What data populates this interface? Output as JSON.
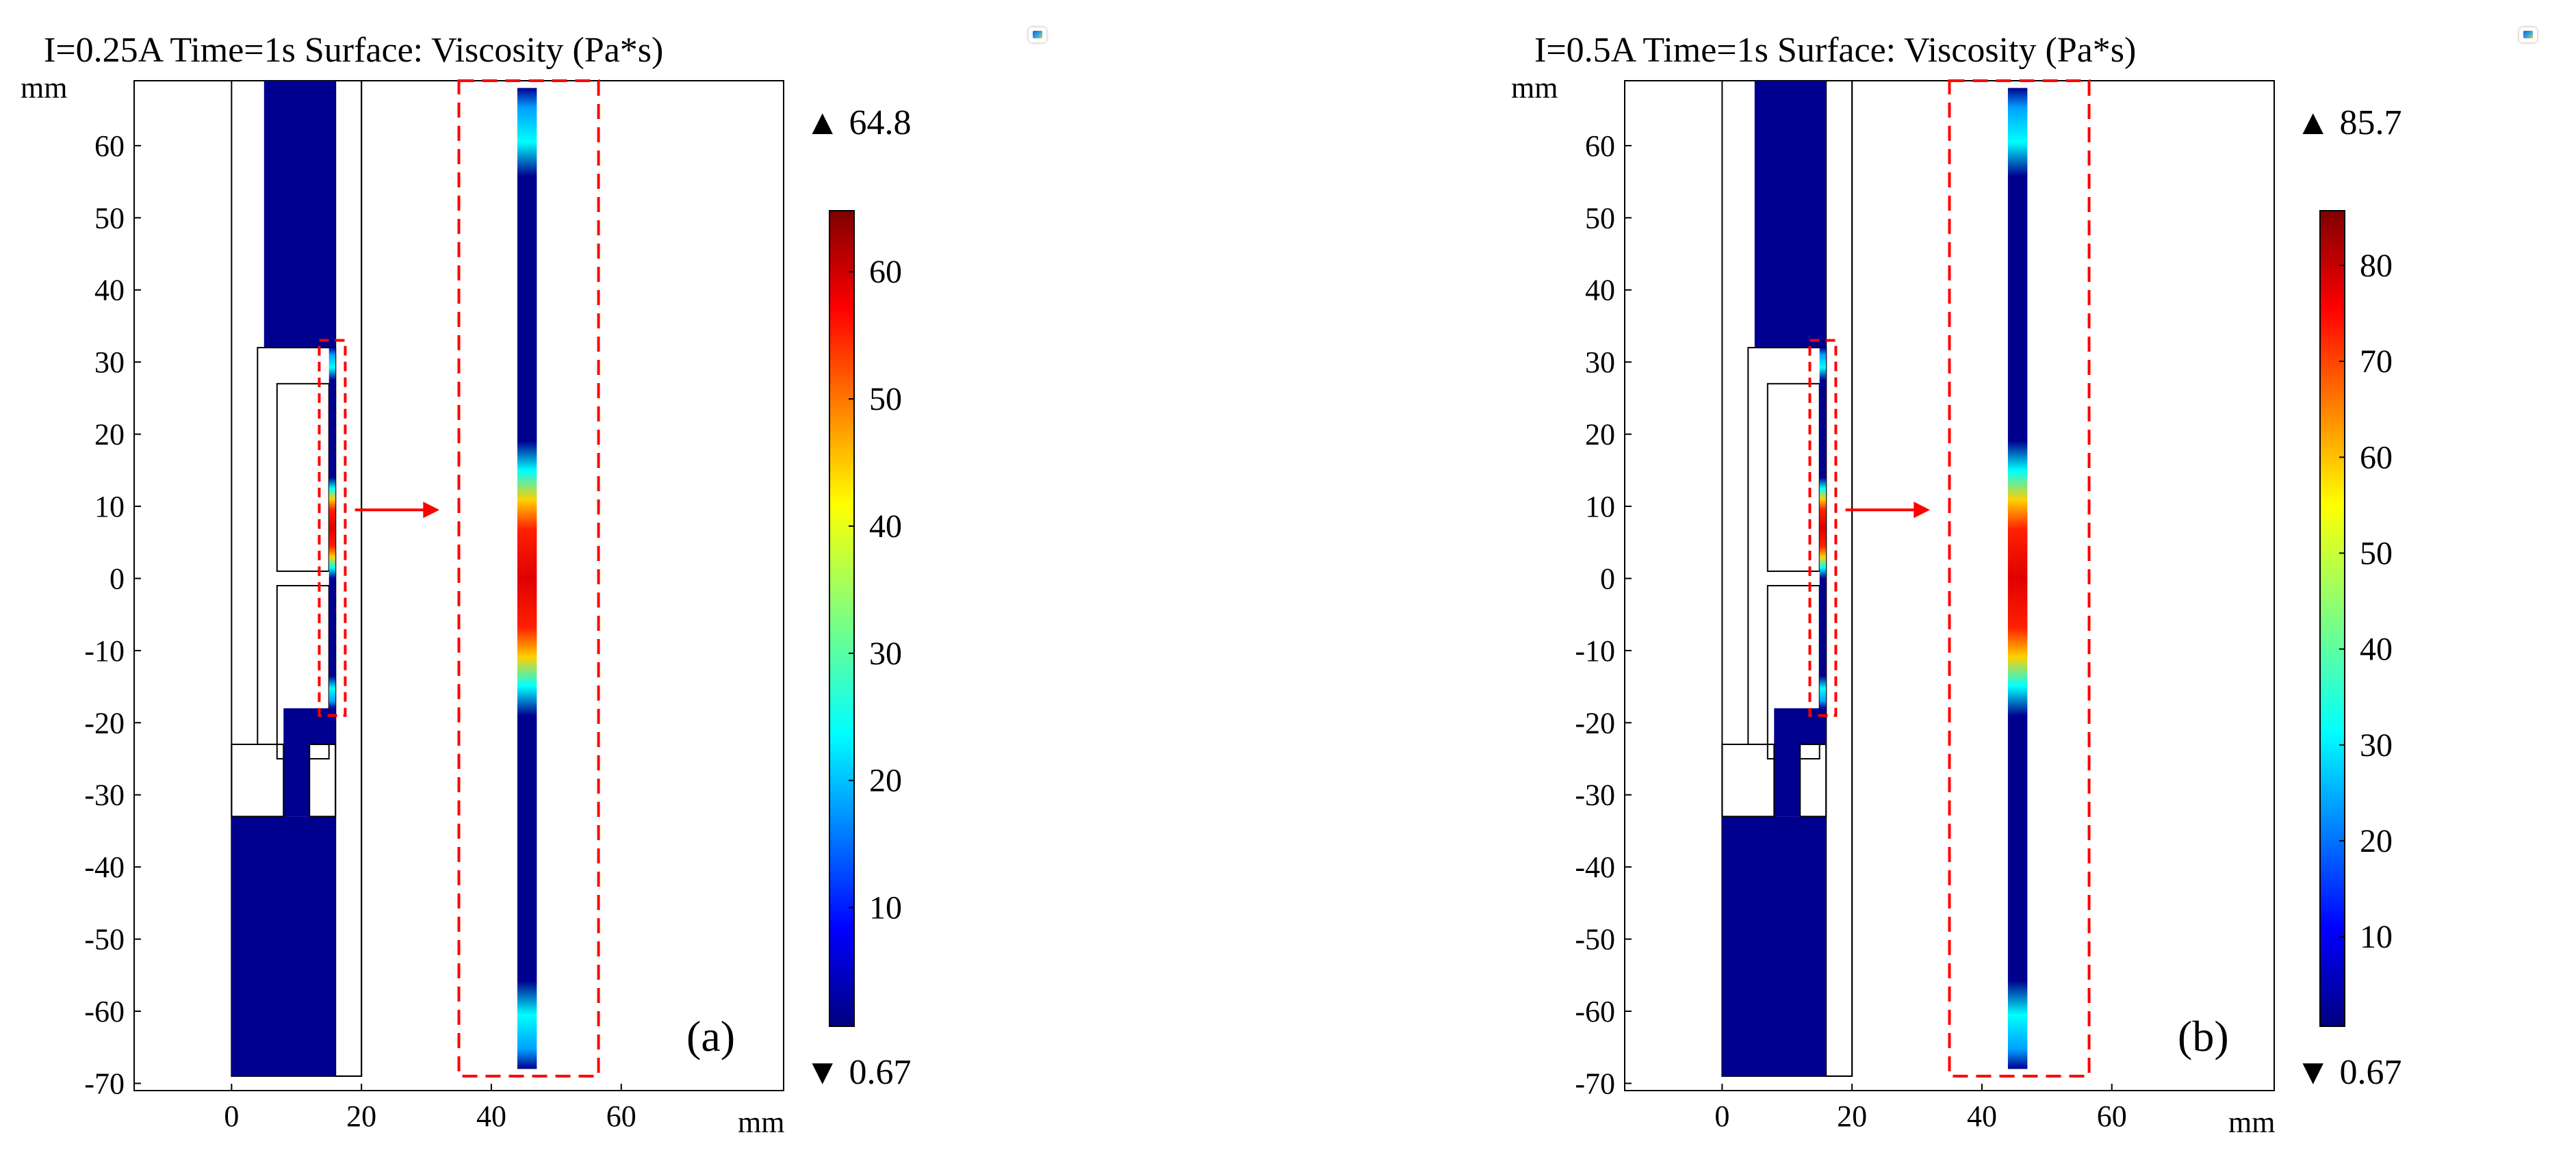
{
  "colors": {
    "fluid_background": "#00008f",
    "outline": "#000000",
    "zoom_box": "#ff0000",
    "arrow": "#ff0000"
  },
  "icons": [
    "comsol-logo-icon",
    "max-triangle-icon",
    "min-triangle-icon"
  ],
  "chart_data": [
    {
      "type": "heatmap",
      "title": "I=0.25A Time=1s Surface: Viscosity (Pa*s)",
      "xlabel": "mm",
      "ylabel": "mm",
      "panel_label": "(a)",
      "xlim": [
        -15,
        85
      ],
      "ylim": [
        -71,
        69
      ],
      "x_ticks": [
        "0",
        "20",
        "40",
        "60"
      ],
      "y_ticks": [
        "60",
        "50",
        "40",
        "30",
        "20",
        "10",
        "0",
        "-10",
        "-20",
        "-30",
        "-40",
        "-50",
        "-60",
        "-70"
      ],
      "colorbar": {
        "max_label": "64.8",
        "min_label": "0.67",
        "max": 64.8,
        "min": 0.67,
        "ticks": [
          "60",
          "50",
          "40",
          "30",
          "20",
          "10"
        ]
      }
    },
    {
      "type": "heatmap",
      "title": "I=0.5A Time=1s Surface: Viscosity (Pa*s)",
      "xlabel": "mm",
      "ylabel": "mm",
      "panel_label": "(b)",
      "xlim": [
        -15,
        85
      ],
      "ylim": [
        -71,
        69
      ],
      "x_ticks": [
        "0",
        "20",
        "40",
        "60"
      ],
      "y_ticks": [
        "60",
        "50",
        "40",
        "30",
        "20",
        "10",
        "0",
        "-10",
        "-20",
        "-30",
        "-40",
        "-50",
        "-60",
        "-70"
      ],
      "colorbar": {
        "max_label": "85.7",
        "min_label": "0.67",
        "max": 85.7,
        "min": 0.67,
        "ticks": [
          "80",
          "70",
          "60",
          "50",
          "40",
          "30",
          "20",
          "10"
        ]
      }
    }
  ]
}
